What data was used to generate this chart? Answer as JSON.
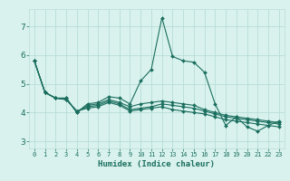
{
  "xlabel": "Humidex (Indice chaleur)",
  "x": [
    0,
    1,
    2,
    3,
    4,
    5,
    6,
    7,
    8,
    9,
    10,
    11,
    12,
    13,
    14,
    15,
    16,
    17,
    18,
    19,
    20,
    21,
    22,
    23
  ],
  "lines": [
    [
      5.8,
      4.7,
      4.5,
      4.5,
      4.0,
      4.3,
      4.35,
      4.55,
      4.5,
      4.3,
      5.1,
      5.5,
      7.3,
      5.95,
      5.8,
      5.75,
      5.4,
      4.3,
      3.55,
      3.85,
      3.5,
      3.35,
      3.55,
      3.7
    ],
    [
      5.8,
      4.7,
      4.5,
      4.5,
      4.0,
      4.25,
      4.3,
      4.45,
      4.35,
      4.2,
      4.3,
      4.35,
      4.4,
      4.35,
      4.3,
      4.25,
      4.1,
      4.0,
      3.9,
      3.85,
      3.8,
      3.75,
      3.7,
      3.65
    ],
    [
      5.8,
      4.7,
      4.5,
      4.45,
      4.05,
      4.2,
      4.25,
      4.4,
      4.3,
      4.1,
      4.15,
      4.2,
      4.3,
      4.25,
      4.2,
      4.15,
      4.05,
      3.95,
      3.85,
      3.8,
      3.75,
      3.7,
      3.65,
      3.6
    ],
    [
      5.8,
      4.7,
      4.5,
      4.45,
      4.05,
      4.15,
      4.2,
      4.35,
      4.25,
      4.05,
      4.1,
      4.15,
      4.2,
      4.1,
      4.05,
      4.0,
      3.95,
      3.85,
      3.75,
      3.7,
      3.65,
      3.6,
      3.55,
      3.5
    ]
  ],
  "line_color": "#1a6e5e",
  "bg_color": "#d9f2ee",
  "grid_color": "#b8ddd7",
  "ylim": [
    2.75,
    7.6
  ],
  "xlim": [
    -0.5,
    23.5
  ],
  "yticks": [
    3,
    4,
    5,
    6,
    7
  ],
  "xticks": [
    0,
    1,
    2,
    3,
    4,
    5,
    6,
    7,
    8,
    9,
    10,
    11,
    12,
    13,
    14,
    15,
    16,
    17,
    18,
    19,
    20,
    21,
    22,
    23
  ]
}
